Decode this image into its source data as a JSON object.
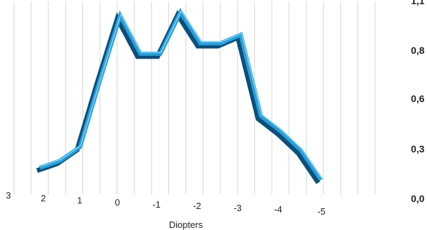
{
  "chart_data": {
    "type": "line",
    "title": "",
    "xlabel": "Diopters",
    "ylabel": "",
    "x": [
      2,
      1.5,
      1,
      0.5,
      0,
      -0.5,
      -1,
      -1.5,
      -2,
      -2.5,
      -3,
      -3.5,
      -4,
      -4.5,
      -5
    ],
    "x_tick_labels": [
      "3",
      "2",
      "1",
      "0",
      "-1",
      "-2",
      "-3",
      "-4",
      "-5"
    ],
    "y_tick_labels": [
      "0,0",
      "0,3",
      "0,6",
      "0,8",
      "1,1"
    ],
    "ylim": [
      0,
      1.1
    ],
    "grid": true,
    "series": [
      {
        "values": [
          0.17,
          0.21,
          0.29,
          0.68,
          1.05,
          0.83,
          0.83,
          1.07,
          0.89,
          0.89,
          0.94,
          0.47,
          0.38,
          0.27,
          0.1
        ],
        "color": "#2a9fd8"
      }
    ]
  }
}
